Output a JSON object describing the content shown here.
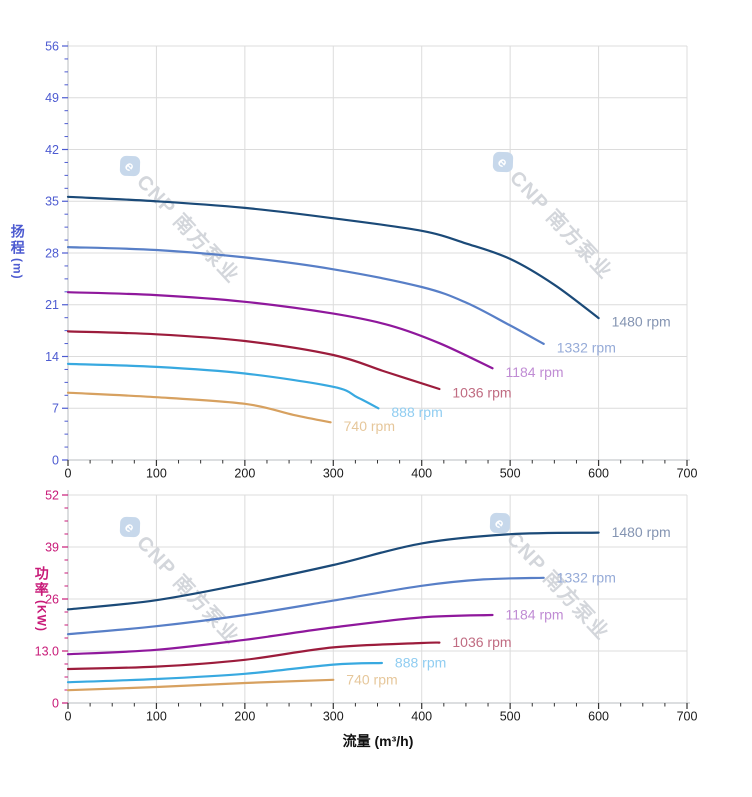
{
  "figure": {
    "background": "#ffffff",
    "x_axis_title": "流量 (m³/h)",
    "watermark": {
      "logo_letter": "e",
      "text": "CNP 南方泵业",
      "text_color": "#d3d6db",
      "logo_color": "#c7d8eb",
      "angle_deg": 47
    }
  },
  "chart_data": [
    {
      "id": "head",
      "type": "line",
      "title": "",
      "xlabel": "流量 (m³/h)",
      "ylabel": "扬程 (m)",
      "ylabel_cn": "扬程",
      "ylabel_unit": "(m)",
      "xlim": [
        0,
        700
      ],
      "ylim": [
        0,
        56
      ],
      "grid": true,
      "legend_position": "curve-end-labels",
      "x_major_ticks": [
        0,
        100,
        200,
        300,
        400,
        500,
        600,
        700
      ],
      "x_minor_step": 25,
      "y_major_ticks": [
        0,
        7,
        14,
        21,
        28,
        35,
        42,
        49,
        56
      ],
      "y_tick_labels": [
        "0",
        "7",
        "14",
        "21",
        "28",
        "35",
        "42",
        "49",
        "56"
      ],
      "y_minor_step": 1.75,
      "axis_color": "#4d5bd1",
      "x_axis_label_color": "#1a1a1a",
      "series": [
        {
          "name": "1480 rpm",
          "color": "#1b4a78",
          "label_color": "#8494b2",
          "points": [
            [
              0,
              35.6
            ],
            [
              100,
              35.0
            ],
            [
              200,
              34.1
            ],
            [
              300,
              32.7
            ],
            [
              400,
              31.0
            ],
            [
              450,
              29.3
            ],
            [
              500,
              27.2
            ],
            [
              550,
              23.7
            ],
            [
              600,
              19.2
            ]
          ]
        },
        {
          "name": "1332 rpm",
          "color": "#587fc7",
          "label_color": "#96abd8",
          "points": [
            [
              0,
              28.8
            ],
            [
              100,
              28.4
            ],
            [
              200,
              27.4
            ],
            [
              300,
              25.8
            ],
            [
              400,
              23.4
            ],
            [
              450,
              21.3
            ],
            [
              500,
              18.2
            ],
            [
              538,
              15.7
            ]
          ]
        },
        {
          "name": "1184 rpm",
          "color": "#8f189c",
          "label_color": "#c08cd4",
          "points": [
            [
              0,
              22.7
            ],
            [
              100,
              22.3
            ],
            [
              200,
              21.4
            ],
            [
              300,
              19.8
            ],
            [
              364,
              18.2
            ],
            [
              420,
              15.8
            ],
            [
              480,
              12.4
            ]
          ]
        },
        {
          "name": "1036 rpm",
          "color": "#9c1c3c",
          "label_color": "#c06c82",
          "points": [
            [
              0,
              17.4
            ],
            [
              100,
              17.0
            ],
            [
              200,
              16.1
            ],
            [
              300,
              14.2
            ],
            [
              360,
              11.9
            ],
            [
              420,
              9.6
            ]
          ]
        },
        {
          "name": "888 rpm",
          "color": "#38a9e0",
          "label_color": "#90cdf1",
          "points": [
            [
              0,
              13.0
            ],
            [
              100,
              12.6
            ],
            [
              200,
              11.7
            ],
            [
              300,
              9.9
            ],
            [
              327,
              8.5
            ],
            [
              351,
              7.0
            ]
          ]
        },
        {
          "name": "740 rpm",
          "color": "#d7a160",
          "label_color": "#e6c79b",
          "points": [
            [
              0,
              9.1
            ],
            [
              100,
              8.5
            ],
            [
              200,
              7.6
            ],
            [
              255,
              6.1
            ],
            [
              297,
              5.1
            ]
          ]
        }
      ]
    },
    {
      "id": "power",
      "type": "line",
      "title": "",
      "xlabel": "流量 (m³/h)",
      "ylabel": "功率 (KW)",
      "ylabel_cn": "功率",
      "ylabel_unit": "(KW)",
      "xlim": [
        0,
        700
      ],
      "ylim": [
        0,
        52
      ],
      "grid": true,
      "legend_position": "curve-end-labels",
      "x_major_ticks": [
        0,
        100,
        200,
        300,
        400,
        500,
        600,
        700
      ],
      "x_minor_step": 25,
      "y_major_ticks": [
        0,
        13,
        26,
        39,
        52
      ],
      "y_tick_labels": [
        "0",
        "13.0",
        "26",
        "39",
        "52"
      ],
      "y_minor_step": 3.25,
      "axis_color": "#c81a78",
      "x_axis_label_color": "#1a1a1a",
      "series": [
        {
          "name": "1480 rpm",
          "color": "#1b4a78",
          "label_color": "#8494b2",
          "points": [
            [
              0,
              23.4
            ],
            [
              100,
              25.7
            ],
            [
              200,
              29.8
            ],
            [
              300,
              34.5
            ],
            [
              400,
              39.9
            ],
            [
              500,
              42.2
            ],
            [
              600,
              42.6
            ]
          ]
        },
        {
          "name": "1332 rpm",
          "color": "#587fc7",
          "label_color": "#96abd8",
          "points": [
            [
              0,
              17.2
            ],
            [
              100,
              19.2
            ],
            [
              200,
              22.0
            ],
            [
              300,
              25.6
            ],
            [
              400,
              29.3
            ],
            [
              470,
              30.9
            ],
            [
              538,
              31.3
            ]
          ]
        },
        {
          "name": "1184 rpm",
          "color": "#8f189c",
          "label_color": "#c08cd4",
          "points": [
            [
              0,
              12.2
            ],
            [
              100,
              13.3
            ],
            [
              200,
              15.8
            ],
            [
              300,
              18.9
            ],
            [
              400,
              21.4
            ],
            [
              480,
              22.0
            ]
          ]
        },
        {
          "name": "1036 rpm",
          "color": "#9c1c3c",
          "label_color": "#c06c82",
          "points": [
            [
              0,
              8.5
            ],
            [
              100,
              9.1
            ],
            [
              200,
              10.8
            ],
            [
              300,
              13.9
            ],
            [
              400,
              15.0
            ],
            [
              420,
              15.1
            ]
          ]
        },
        {
          "name": "888 rpm",
          "color": "#38a9e0",
          "label_color": "#90cdf1",
          "points": [
            [
              0,
              5.2
            ],
            [
              100,
              6.0
            ],
            [
              200,
              7.3
            ],
            [
              300,
              9.6
            ],
            [
              355,
              10.0
            ]
          ]
        },
        {
          "name": "740 rpm",
          "color": "#d7a160",
          "label_color": "#e6c79b",
          "points": [
            [
              0,
              3.2
            ],
            [
              100,
              4.0
            ],
            [
              200,
              5.0
            ],
            [
              300,
              5.8
            ]
          ]
        }
      ]
    }
  ]
}
